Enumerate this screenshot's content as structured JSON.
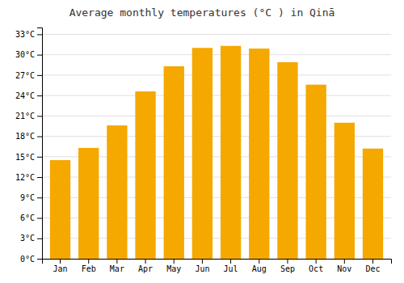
{
  "chart_data": {
    "type": "bar",
    "title": "Average monthly temperatures (°C ) in Qinā",
    "categories": [
      "Jan",
      "Feb",
      "Mar",
      "Apr",
      "May",
      "Jun",
      "Jul",
      "Aug",
      "Sep",
      "Oct",
      "Nov",
      "Dec"
    ],
    "values": [
      14.5,
      16.3,
      19.6,
      24.6,
      28.3,
      31.0,
      31.3,
      30.9,
      28.9,
      25.6,
      20.0,
      16.2
    ],
    "color": "#F5A800",
    "ylim": [
      0,
      34
    ],
    "yticks": [
      {
        "value": 0,
        "label": "0°C"
      },
      {
        "value": 3,
        "label": "3°C"
      },
      {
        "value": 6,
        "label": "6°C"
      },
      {
        "value": 9,
        "label": "9°C"
      },
      {
        "value": 12,
        "label": "12°C"
      },
      {
        "value": 15,
        "label": "15°C"
      },
      {
        "value": 18,
        "label": "18°C"
      },
      {
        "value": 21,
        "label": "21°C"
      },
      {
        "value": 24,
        "label": "24°C"
      },
      {
        "value": 27,
        "label": "27°C"
      },
      {
        "value": 30,
        "label": "30°C"
      },
      {
        "value": 33,
        "label": "33°C"
      }
    ],
    "grid": true
  }
}
